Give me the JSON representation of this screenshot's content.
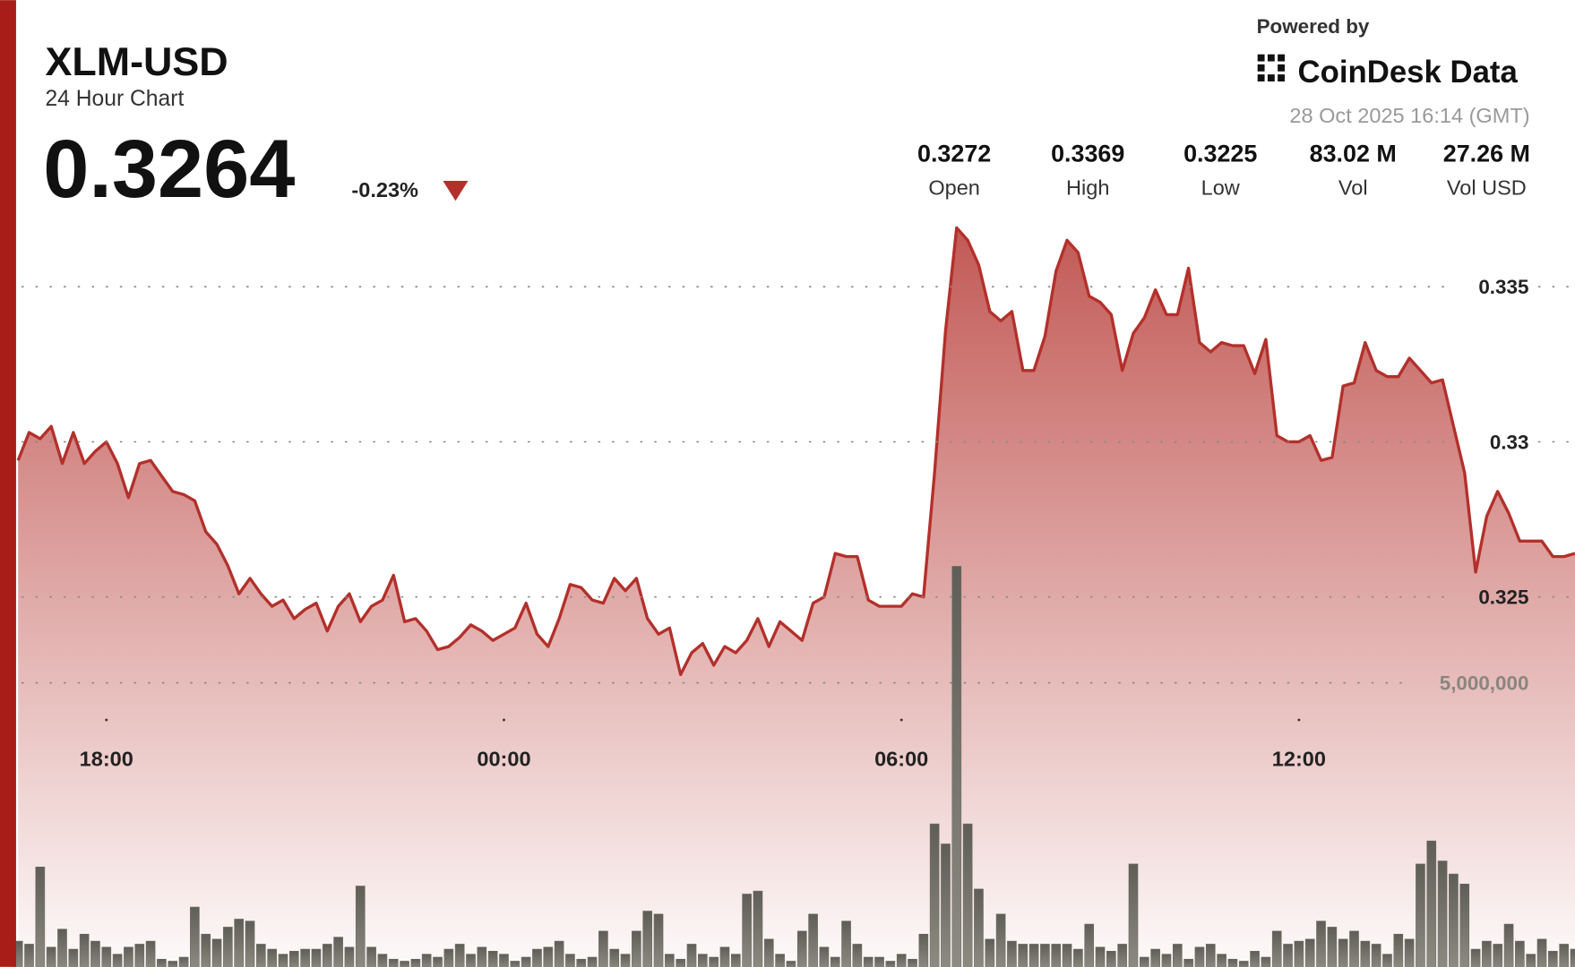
{
  "header": {
    "symbol": "XLM-USD",
    "subtitle": "24 Hour Chart",
    "price": 0.3264,
    "change": "-0.23%",
    "powered_by": "Powered by",
    "brand": "CoinDesk Data",
    "timestamp": "28 Oct 2025 16:14 (GMT)",
    "stats": [
      {
        "value": "0.3272",
        "label": "Open"
      },
      {
        "value": "0.3369",
        "label": "High"
      },
      {
        "value": "0.3225",
        "label": "Low"
      },
      {
        "value": "83.02 M",
        "label": "Vol"
      },
      {
        "value": "27.26 M",
        "label": "Vol USD"
      }
    ]
  },
  "chart_data": {
    "type": "line",
    "x": [
      "16:40",
      "16:50",
      "17:00",
      "17:10",
      "17:20",
      "17:30",
      "17:40",
      "17:50",
      "18:00",
      "18:10",
      "18:20",
      "18:30",
      "18:40",
      "18:50",
      "19:00",
      "19:10",
      "19:20",
      "19:30",
      "19:40",
      "19:50",
      "20:00",
      "20:10",
      "20:20",
      "20:30",
      "20:40",
      "20:50",
      "21:00",
      "21:10",
      "21:20",
      "21:30",
      "21:40",
      "21:50",
      "22:00",
      "22:10",
      "22:20",
      "22:30",
      "22:40",
      "22:50",
      "23:00",
      "23:10",
      "23:20",
      "23:30",
      "23:40",
      "23:50",
      "00:00",
      "00:10",
      "00:20",
      "00:30",
      "00:40",
      "00:50",
      "01:00",
      "01:10",
      "01:20",
      "01:30",
      "01:40",
      "01:50",
      "02:00",
      "02:10",
      "02:20",
      "02:30",
      "02:40",
      "02:50",
      "03:00",
      "03:10",
      "03:20",
      "03:30",
      "03:40",
      "03:50",
      "04:00",
      "04:10",
      "04:20",
      "04:30",
      "04:40",
      "04:50",
      "05:00",
      "05:10",
      "05:20",
      "05:30",
      "05:40",
      "05:50",
      "06:00",
      "06:10",
      "06:20",
      "06:30",
      "06:40",
      "06:50",
      "07:00",
      "07:10",
      "07:20",
      "07:30",
      "07:40",
      "07:50",
      "08:00",
      "08:10",
      "08:20",
      "08:30",
      "08:40",
      "08:50",
      "09:00",
      "09:10",
      "09:20",
      "09:30",
      "09:40",
      "09:50",
      "10:00",
      "10:10",
      "10:20",
      "10:30",
      "10:40",
      "10:50",
      "11:00",
      "11:10",
      "11:20",
      "11:30",
      "11:40",
      "11:50",
      "12:00",
      "12:10",
      "12:20",
      "12:30",
      "12:40",
      "12:50",
      "13:00",
      "13:10",
      "13:20",
      "13:30",
      "13:40",
      "13:50",
      "14:00",
      "14:10",
      "14:20",
      "14:30",
      "14:40",
      "14:50",
      "15:00",
      "15:10",
      "15:20",
      "15:30",
      "15:40",
      "15:50",
      "16:00",
      "16:10"
    ],
    "xticks": [
      "18:00",
      "00:00",
      "06:00",
      "12:00"
    ],
    "ylim": [
      0.313,
      0.337
    ],
    "yticks": [
      0.325,
      0.33,
      0.335
    ],
    "y2lim": [
      0,
      13000000
    ],
    "y2ticks": [
      {
        "value": 5000000,
        "label": "5,000,000"
      }
    ],
    "grid": true,
    "series": [
      {
        "type": "area",
        "color": "#b3302b",
        "values": [
          0.3294,
          0.3303,
          0.3301,
          0.3305,
          0.3293,
          0.3303,
          0.3293,
          0.3297,
          0.33,
          0.3293,
          0.3282,
          0.3293,
          0.3294,
          0.3289,
          0.3284,
          0.3283,
          0.3281,
          0.3271,
          0.3267,
          0.326,
          0.3251,
          0.3256,
          0.3251,
          0.3247,
          0.3249,
          0.3243,
          0.3246,
          0.3248,
          0.3239,
          0.3247,
          0.3251,
          0.3242,
          0.3247,
          0.3249,
          0.3257,
          0.3242,
          0.3243,
          0.3239,
          0.3233,
          0.3234,
          0.3237,
          0.3241,
          0.3239,
          0.3236,
          0.3238,
          0.324,
          0.3248,
          0.3238,
          0.3234,
          0.3243,
          0.3254,
          0.3253,
          0.3249,
          0.3248,
          0.3256,
          0.3252,
          0.3256,
          0.3243,
          0.3238,
          0.324,
          0.3225,
          0.3232,
          0.3235,
          0.3228,
          0.3234,
          0.3232,
          0.3236,
          0.3243,
          0.3234,
          0.3242,
          0.3239,
          0.3236,
          0.3248,
          0.325,
          0.3264,
          0.3263,
          0.3263,
          0.3249,
          0.3247,
          0.3247,
          0.3247,
          0.3251,
          0.325,
          0.329,
          0.3336,
          0.3369,
          0.3365,
          0.3357,
          0.3342,
          0.3339,
          0.3342,
          0.3323,
          0.3323,
          0.3334,
          0.3355,
          0.3365,
          0.3361,
          0.3347,
          0.3345,
          0.3341,
          0.3323,
          0.3335,
          0.334,
          0.3349,
          0.3341,
          0.3341,
          0.3356,
          0.3332,
          0.3329,
          0.3332,
          0.3331,
          0.3331,
          0.3322,
          0.3333,
          0.3302,
          0.33,
          0.33,
          0.3302,
          0.3294,
          0.3295,
          0.3318,
          0.3319,
          0.3332,
          0.3323,
          0.3321,
          0.3321,
          0.3327,
          0.3323,
          0.3319,
          0.332,
          0.3305,
          0.329,
          0.3258,
          0.3276,
          0.3284,
          0.3277,
          0.3268,
          0.3268,
          0.3268,
          0.3263,
          0.3263,
          0.3264
        ]
      },
      {
        "type": "bar",
        "axis": "y2",
        "color": "#6e6d65",
        "values": [
          490000,
          437500,
          1785000,
          385000,
          700000,
          350000,
          612500,
          490000,
          385000,
          262500,
          385000,
          437500,
          490000,
          175000,
          140000,
          210000,
          1085000,
          612500,
          525000,
          735000,
          875000,
          840000,
          437500,
          350000,
          262500,
          315000,
          350000,
          350000,
          437500,
          560000,
          385000,
          1452500,
          385000,
          262500,
          175000,
          140000,
          175000,
          262500,
          210000,
          350000,
          437500,
          262500,
          385000,
          315000,
          262500,
          140000,
          210000,
          350000,
          385000,
          490000,
          262500,
          175000,
          210000,
          665000,
          350000,
          262500,
          665000,
          1015000,
          962500,
          262500,
          175000,
          437500,
          262500,
          210000,
          385000,
          262500,
          1312500,
          1365000,
          525000,
          262500,
          140000,
          665000,
          962500,
          385000,
          210000,
          840000,
          437500,
          210000,
          210000,
          140000,
          262500,
          175000,
          612500,
          2537500,
          2187500,
          7035000,
          2537500,
          1400000,
          525000,
          962500,
          490000,
          437500,
          437500,
          437500,
          437500,
          437500,
          350000,
          787500,
          385000,
          315000,
          437500,
          1837500,
          210000,
          350000,
          262500,
          437500,
          175000,
          385000,
          437500,
          262500,
          175000,
          140000,
          315000,
          210000,
          665000,
          437500,
          490000,
          525000,
          840000,
          735000,
          525000,
          665000,
          490000,
          437500,
          262500,
          612500,
          525000,
          1837500,
          2240000,
          1890000,
          1662500,
          1487500,
          350000,
          490000,
          437500,
          787500,
          490000,
          262500,
          525000,
          315000,
          437500,
          350000
        ]
      }
    ]
  }
}
